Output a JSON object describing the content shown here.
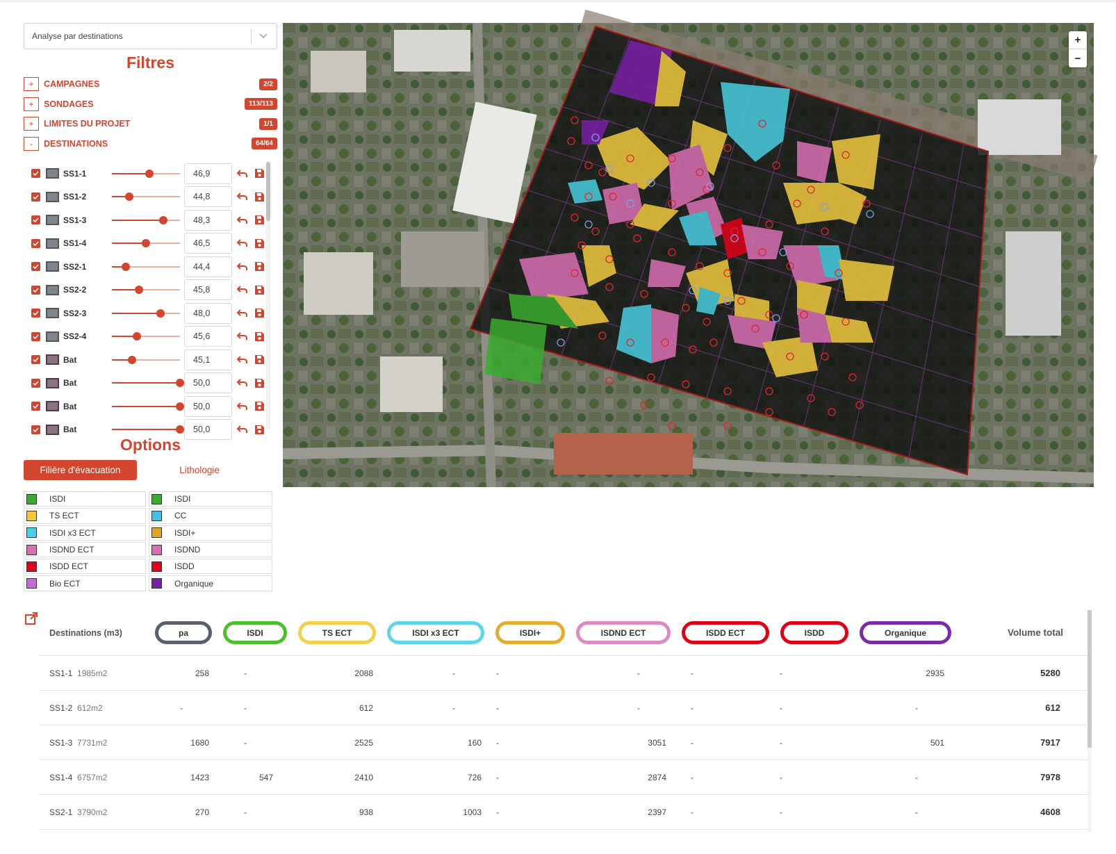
{
  "analysis_select": {
    "value": "Analyse par destinations"
  },
  "filters": {
    "title": "Filtres",
    "groups": [
      {
        "toggle": "+",
        "label": "CAMPAGNES",
        "badge": "2/2"
      },
      {
        "toggle": "+",
        "label": "SONDAGES",
        "badge": "113/113"
      },
      {
        "toggle": "+",
        "label": "LIMITES DU PROJET",
        "badge": "1/1"
      },
      {
        "toggle": "-",
        "label": "DESTINATIONS",
        "badge": "64/64"
      }
    ]
  },
  "destinations": [
    {
      "name": "SS1-1",
      "value": "46,9",
      "level": 0.55,
      "type": "ss"
    },
    {
      "name": "SS1-2",
      "value": "44,8",
      "level": 0.25,
      "type": "ss"
    },
    {
      "name": "SS1-3",
      "value": "48,3",
      "level": 0.75,
      "type": "ss"
    },
    {
      "name": "SS1-4",
      "value": "46,5",
      "level": 0.5,
      "type": "ss"
    },
    {
      "name": "SS2-1",
      "value": "44,4",
      "level": 0.2,
      "type": "ss"
    },
    {
      "name": "SS2-2",
      "value": "45,8",
      "level": 0.4,
      "type": "ss"
    },
    {
      "name": "SS2-3",
      "value": "48,0",
      "level": 0.71,
      "type": "ss"
    },
    {
      "name": "SS2-4",
      "value": "45,6",
      "level": 0.37,
      "type": "ss"
    },
    {
      "name": "Bat",
      "value": "45,1",
      "level": 0.3,
      "type": "bat"
    },
    {
      "name": "Bat",
      "value": "50,0",
      "level": 1.0,
      "type": "bat"
    },
    {
      "name": "Bat",
      "value": "50,0",
      "level": 1.0,
      "type": "bat"
    },
    {
      "name": "Bat",
      "value": "50,0",
      "level": 1.0,
      "type": "bat"
    }
  ],
  "options": {
    "title": "Options",
    "tabs": [
      {
        "label": "Filière d'évacuation",
        "active": true
      },
      {
        "label": "Lithologie",
        "active": false
      }
    ]
  },
  "legend": {
    "left": [
      {
        "label": "ISDI",
        "color": "#3aab2e"
      },
      {
        "label": "TS ECT",
        "color": "#f4c73c"
      },
      {
        "label": "ISDI x3 ECT",
        "color": "#45d1e8"
      },
      {
        "label": "ISDND ECT",
        "color": "#d96fb3"
      },
      {
        "label": "ISDD ECT",
        "color": "#e3001b"
      },
      {
        "label": "Bio ECT",
        "color": "#c76ad8"
      }
    ],
    "right": [
      {
        "label": "ISDI",
        "color": "#3aab2e"
      },
      {
        "label": "CC",
        "color": "#45bde6"
      },
      {
        "label": "ISDI+",
        "color": "#e0a528"
      },
      {
        "label": "ISDND",
        "color": "#d96fb3"
      },
      {
        "label": "ISDD",
        "color": "#e3001b"
      },
      {
        "label": "Organique",
        "color": "#7a1fa8"
      }
    ]
  },
  "map": {
    "zoom_in": "+",
    "zoom_out": "−"
  },
  "table": {
    "header_first": "Destinations (m3)",
    "header_total": "Volume total",
    "columns": [
      {
        "label": "pa",
        "color": "#5a5f6b"
      },
      {
        "label": "ISDI",
        "color": "#4cbf2e"
      },
      {
        "label": "TS ECT",
        "color": "#f4cf4a"
      },
      {
        "label": "ISDI x3 ECT",
        "color": "#5fd5ec"
      },
      {
        "label": "ISDI+",
        "color": "#e3ae2e"
      },
      {
        "label": "ISDND ECT",
        "color": "#dd8ac0"
      },
      {
        "label": "ISDD ECT",
        "color": "#e00016"
      },
      {
        "label": "ISDD",
        "color": "#e00016"
      },
      {
        "label": "Organique",
        "color": "#7d2aa8"
      }
    ],
    "rows": [
      {
        "name": "SS1-1",
        "area": "1985m2",
        "values": [
          "258",
          "-",
          "2088",
          "-",
          "-",
          "-",
          "-",
          "-",
          "2935"
        ],
        "total": "5280"
      },
      {
        "name": "SS1-2",
        "area": "612m2",
        "values": [
          "-",
          "-",
          "612",
          "-",
          "-",
          "-",
          "-",
          "-",
          "-"
        ],
        "total": "612"
      },
      {
        "name": "SS1-3",
        "area": "7731m2",
        "values": [
          "1680",
          "-",
          "2525",
          "160",
          "-",
          "3051",
          "-",
          "-",
          "501"
        ],
        "total": "7917"
      },
      {
        "name": "SS1-4",
        "area": "6757m2",
        "values": [
          "1423",
          "547",
          "2410",
          "726",
          "-",
          "2874",
          "-",
          "-",
          "-"
        ],
        "total": "7978"
      },
      {
        "name": "SS2-1",
        "area": "3790m2",
        "values": [
          "270",
          "-",
          "938",
          "1003",
          "-",
          "2397",
          "-",
          "-",
          "-"
        ],
        "total": "4608"
      }
    ]
  }
}
